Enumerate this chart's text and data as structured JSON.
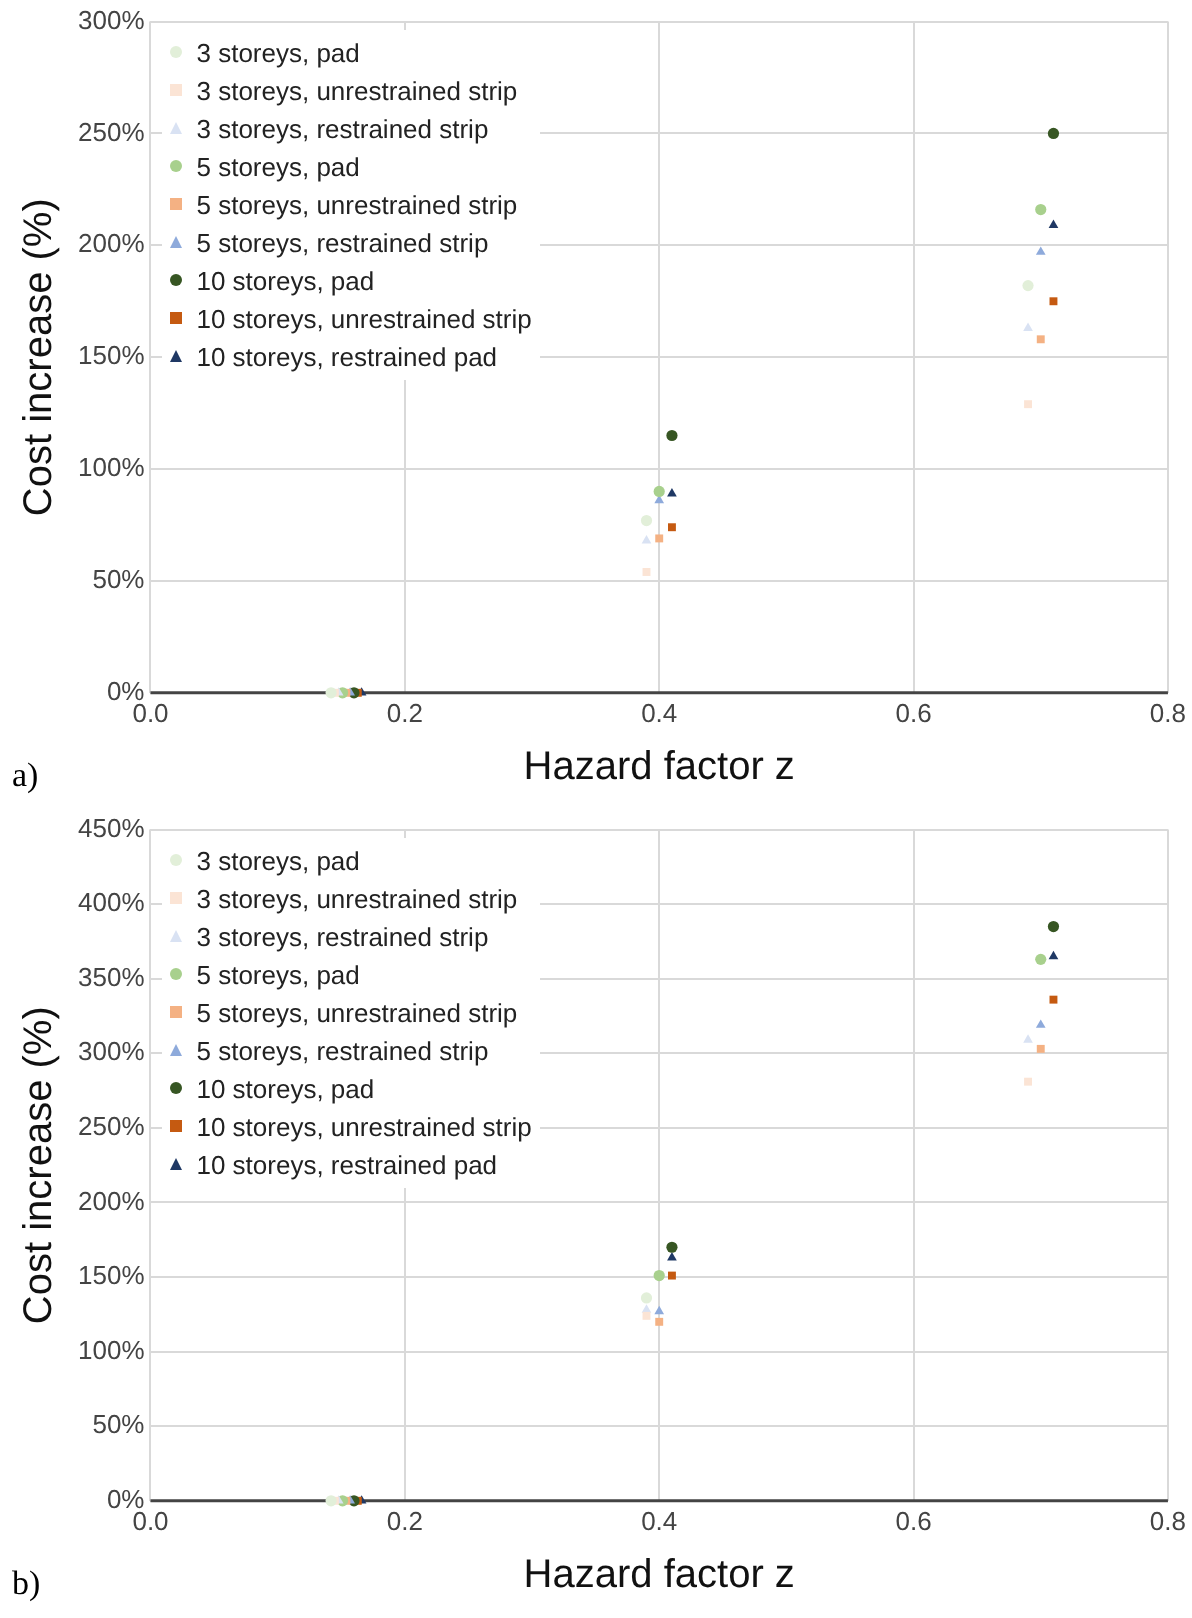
{
  "chart_data": [
    {
      "type": "scatter",
      "xlabel": "Hazard factor z",
      "ylabel": "Cost increase (%)",
      "annotations": [
        "a)"
      ],
      "xlim": [
        0,
        0.8
      ],
      "xticks": [
        {
          "value": 0,
          "label": "0.0"
        },
        0.2,
        0.4,
        0.6,
        0.8
      ],
      "ylim": [
        0,
        300
      ],
      "yticks": [
        {
          "value": 0,
          "label": "0%"
        },
        {
          "value": 50,
          "label": "50%"
        },
        {
          "value": 100,
          "label": "100%"
        },
        {
          "value": 150,
          "label": "150%"
        },
        {
          "value": 200,
          "label": "200%"
        },
        {
          "value": 250,
          "label": "250%"
        },
        {
          "value": 300,
          "label": "300%"
        }
      ],
      "grid": true,
      "legend": "top left",
      "series": [
        {
          "name": "3 storeys, pad",
          "color": "#e2efd9",
          "marker": "circle",
          "x": [
            0.142,
            0.39,
            0.69
          ],
          "values": [
            0,
            77,
            182
          ]
        },
        {
          "name": "3 storeys, unrestrained strip",
          "color": "#fbe4d5",
          "marker": "square",
          "x": [
            0.145,
            0.39,
            0.69
          ],
          "values": [
            0,
            54,
            129
          ]
        },
        {
          "name": "3 storeys, restrained strip",
          "color": "#d9e2f3",
          "marker": "triangle",
          "x": [
            0.148,
            0.39,
            0.69
          ],
          "values": [
            0,
            68,
            163
          ]
        },
        {
          "name": "5 storeys, pad",
          "color": "#a8d08d",
          "marker": "circle",
          "x": [
            0.151,
            0.4,
            0.7
          ],
          "values": [
            0,
            90,
            216
          ]
        },
        {
          "name": "5 storeys, unrestrained strip",
          "color": "#f4b183",
          "marker": "square",
          "x": [
            0.154,
            0.4,
            0.7
          ],
          "values": [
            0,
            69,
            158
          ]
        },
        {
          "name": "5 storeys, restrained strip",
          "color": "#8eaadb",
          "marker": "triangle",
          "x": [
            0.157,
            0.4,
            0.7
          ],
          "values": [
            0,
            86,
            197
          ]
        },
        {
          "name": "10 storeys, pad",
          "color": "#375623",
          "marker": "circle",
          "x": [
            0.16,
            0.41,
            0.71
          ],
          "values": [
            0,
            115,
            250
          ]
        },
        {
          "name": "10 storeys, unrestrained strip",
          "color": "#c55a11",
          "marker": "square",
          "x": [
            0.163,
            0.41,
            0.71
          ],
          "values": [
            0,
            74,
            175
          ]
        },
        {
          "name": "10 storeys, restrained pad",
          "color": "#1f3864",
          "marker": "triangle",
          "x": [
            0.166,
            0.41,
            0.71
          ],
          "values": [
            0,
            89,
            209
          ]
        }
      ]
    },
    {
      "type": "scatter",
      "xlabel": "Hazard factor z",
      "ylabel": "Cost increase (%)",
      "annotations": [
        "b)"
      ],
      "xlim": [
        0,
        0.8
      ],
      "xticks": [
        {
          "value": 0,
          "label": "0.0"
        },
        0.2,
        0.4,
        0.6,
        0.8
      ],
      "ylim": [
        0,
        450
      ],
      "yticks": [
        {
          "value": 0,
          "label": "0%"
        },
        {
          "value": 50,
          "label": "50%"
        },
        {
          "value": 100,
          "label": "100%"
        },
        {
          "value": 150,
          "label": "150%"
        },
        {
          "value": 200,
          "label": "200%"
        },
        {
          "value": 250,
          "label": "250%"
        },
        {
          "value": 300,
          "label": "300%"
        },
        {
          "value": 350,
          "label": "350%"
        },
        {
          "value": 400,
          "label": "400%"
        },
        {
          "value": 450,
          "label": "450%"
        }
      ],
      "grid": true,
      "legend": "top left",
      "series": [
        {
          "name": "3 storeys, pad",
          "color": "#e2efd9",
          "marker": "circle",
          "x": [
            0.142,
            0.39
          ],
          "values": [
            0,
            136
          ]
        },
        {
          "name": "3 storeys, unrestrained strip",
          "color": "#fbe4d5",
          "marker": "square",
          "x": [
            0.145,
            0.39,
            0.69
          ],
          "values": [
            0,
            124,
            281
          ]
        },
        {
          "name": "3 storeys, restrained strip",
          "color": "#d9e2f3",
          "marker": "triangle",
          "x": [
            0.148,
            0.39,
            0.69
          ],
          "values": [
            0,
            128,
            309
          ]
        },
        {
          "name": "5 storeys, pad",
          "color": "#a8d08d",
          "marker": "circle",
          "x": [
            0.151,
            0.4,
            0.7
          ],
          "values": [
            0,
            151,
            363
          ]
        },
        {
          "name": "5 storeys, unrestrained strip",
          "color": "#f4b183",
          "marker": "square",
          "x": [
            0.154,
            0.4,
            0.7
          ],
          "values": [
            0,
            120,
            303
          ]
        },
        {
          "name": "5 storeys, restrained strip",
          "color": "#8eaadb",
          "marker": "triangle",
          "x": [
            0.157,
            0.4,
            0.7
          ],
          "values": [
            0,
            127,
            319
          ]
        },
        {
          "name": "10 storeys, pad",
          "color": "#375623",
          "marker": "circle",
          "x": [
            0.16,
            0.41,
            0.71
          ],
          "values": [
            0,
            170,
            385
          ]
        },
        {
          "name": "10 storeys, unrestrained strip",
          "color": "#c55a11",
          "marker": "square",
          "x": [
            0.163,
            0.41,
            0.71
          ],
          "values": [
            0,
            151,
            336
          ]
        },
        {
          "name": "10 storeys, restrained pad",
          "color": "#1f3864",
          "marker": "triangle",
          "x": [
            0.166,
            0.41,
            0.71
          ],
          "values": [
            0,
            163,
            365
          ]
        }
      ]
    }
  ]
}
